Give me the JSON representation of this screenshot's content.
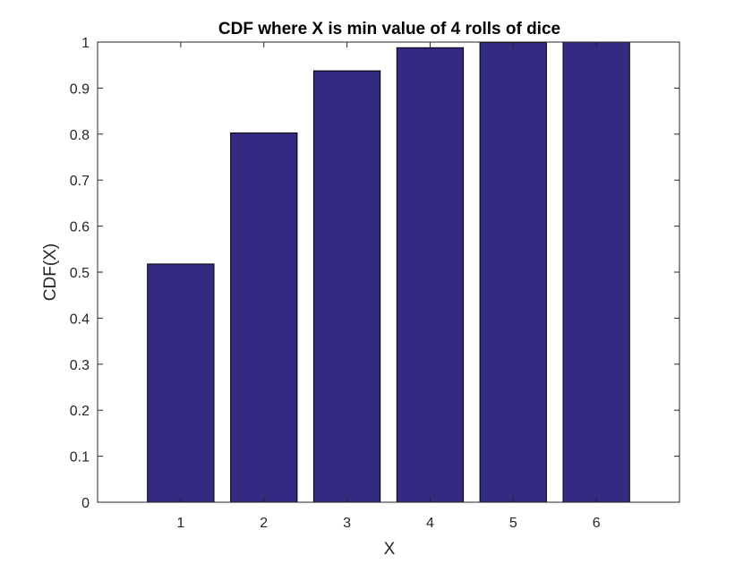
{
  "chart_data": {
    "type": "bar",
    "title": "CDF where X is min value of 4 rolls of dice",
    "xlabel": "X",
    "ylabel": "CDF(X)",
    "categories": [
      "1",
      "2",
      "3",
      "4",
      "5",
      "6"
    ],
    "values": [
      0.5177,
      0.8025,
      0.9375,
      0.9877,
      0.9992,
      1.0
    ],
    "ylim": [
      0,
      1
    ],
    "yticks": [
      "0",
      "0.1",
      "0.2",
      "0.3",
      "0.4",
      "0.5",
      "0.6",
      "0.7",
      "0.8",
      "0.9",
      "1"
    ],
    "xlim": [
      0,
      7
    ],
    "grid": false,
    "legend": "none",
    "bar_color": "#332a82",
    "axis_color": "#262626"
  }
}
